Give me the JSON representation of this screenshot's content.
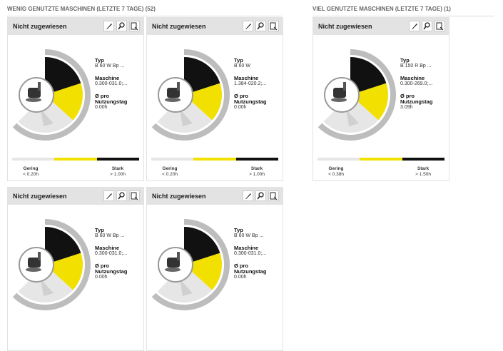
{
  "sections": [
    {
      "title": "WENIG GENUTZTE MASCHINEN (LETZTE 7 TAGE) (52)",
      "cards": [
        {
          "header": "Nicht zugewiesen",
          "type_label": "Typ",
          "type": "B 60 W Bp ...",
          "machine_label": "Maschine",
          "machine": "0.300-031.0;...",
          "usage_label": "Ø pro Nutzungstag",
          "usage": "0.00h",
          "legend": {
            "low_label": "Gering",
            "low_value": "< 0.20h",
            "high_label": "Stark",
            "high_value": "> 1.00h"
          }
        },
        {
          "header": "Nicht zugewiesen",
          "type_label": "Typ",
          "type": "B 60 W",
          "machine_label": "Maschine",
          "machine": "1.384-020.2;...",
          "usage_label": "Ø pro Nutzungstag",
          "usage": "0.00h",
          "legend": {
            "low_label": "Gering",
            "low_value": "< 0.20h",
            "high_label": "Stark",
            "high_value": "> 1.00h"
          }
        },
        {
          "header": "Nicht zugewiesen",
          "type_label": "Typ",
          "type": "B 60 W Bp ...",
          "machine_label": "Maschine",
          "machine": "0.300-031.0;...",
          "usage_label": "Ø pro Nutzungstag",
          "usage": "0.00h"
        },
        {
          "header": "Nicht zugewiesen",
          "type_label": "Typ",
          "type": "B 60 W Bp ...",
          "machine_label": "Maschine",
          "machine": "0.300-031.0;...",
          "usage_label": "Ø pro Nutzungstag",
          "usage": "0.00h"
        }
      ]
    },
    {
      "title": "VIEL GENUTZTE MASCHINEN (LETZTE 7 TAGE) (1)",
      "cards": [
        {
          "header": "Nicht zugewiesen",
          "type_label": "Typ",
          "type": "B 150 R Bp ...",
          "machine_label": "Maschine",
          "machine": "0.300-269.0;...",
          "usage_label": "Ø pro Nutzungstag",
          "usage": "3.09h",
          "legend": {
            "low_label": "Gering",
            "low_value": "< 0.38h",
            "high_label": "Stark",
            "high_value": "> 1.50h"
          }
        }
      ]
    }
  ]
}
